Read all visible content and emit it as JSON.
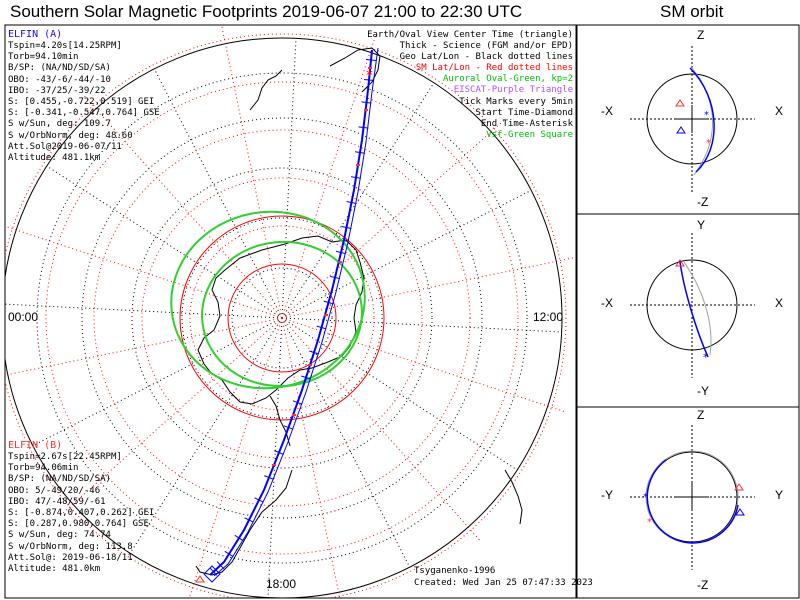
{
  "title": "Southern Solar Magnetic Footprints 2019-06-07 21:00 to 22:30 UTC",
  "orbit_title": "SM orbit",
  "elfin_a": {
    "header": "ELFIN (A)",
    "lines": [
      "Tspin=4.20s[14.25RPM]",
      "Torb=94.10min",
      "B/SP: (NA/ND/SD/SA)",
      "OBO: -43/-6/-44/-10",
      "IBO: -37/25/-39/22",
      "S: [0.455,-0.722,0.519] GEI",
      "S: [-0.341,-0.547,0.764] GSE",
      "S w/Sun, deg: 109.7",
      "S w/OrbNorm, deg: 48.60",
      "Att.Sol@2019-06-07/11",
      "Altitude: 481.1km"
    ]
  },
  "elfin_b": {
    "header": "ELFIN (B)",
    "lines": [
      "Tspin=2.67s[22.45RPM]",
      "Torb=94.06min",
      "B/SP: (NA/ND/SD/SA)",
      "OBO: 5/-49/20/-46",
      "IBO: 47/-48/59/-61",
      "S: [-0.874,0.407,0.262] GEI",
      "S: [0.287,0.980,0.764] GSE",
      "S w/Sun, deg: 74.74",
      "S w/OrbNorm, deg: 113.8",
      "Att.Sol@: 2019-06-18/11",
      "Altitude: 481.0km"
    ]
  },
  "legend": [
    {
      "text": "Earth/Oval View Center Time (triangle)",
      "color": "#000000"
    },
    {
      "text": "Thick - Science (FGM and/or EPD)",
      "color": "#000000"
    },
    {
      "text": "Geo Lat/Lon - Black dotted lines",
      "color": "#000000"
    },
    {
      "text": "SM Lat/Lon - Red dotted lines",
      "color": "#ff0000"
    },
    {
      "text": "Auroral Oval-Green, kp=2",
      "color": "#00c000"
    },
    {
      "text": "EISCAT-Purple Triangle",
      "color": "#b050ff"
    },
    {
      "text": "Tick Marks every 5min",
      "color": "#000000"
    },
    {
      "text": "Start Time-Diamond",
      "color": "#000000"
    },
    {
      "text": "End Time-Asterisk",
      "color": "#000000"
    },
    {
      "text": "Vsf-Green Square",
      "color": "#00c000"
    }
  ],
  "map_labels": {
    "left": "00:00",
    "right": "12:00",
    "bottom": "18:00"
  },
  "footer": {
    "author": "Tsyganenko-1996",
    "created": "Created: Wed Jan 25 07:47:33 2023"
  },
  "panels": [
    {
      "top": "Z",
      "bottom": "-Z",
      "left": "-X",
      "right": "X"
    },
    {
      "top": "Y",
      "bottom": "-Y",
      "left": "-X",
      "right": "X"
    },
    {
      "top": "Z",
      "bottom": "-Z",
      "left": "-Y",
      "right": "Y"
    }
  ],
  "colors": {
    "elfin_a": "#0000ff",
    "elfin_b": "#0000ff",
    "sm_grid": "#ff0000",
    "oval": "#30d030",
    "orbit_gray": "#a0a0a0"
  }
}
